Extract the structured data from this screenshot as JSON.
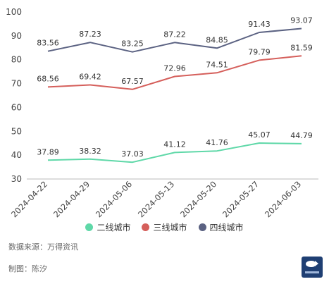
{
  "chart_data": {
    "type": "line",
    "categories": [
      "2024-04-22",
      "2024-04-29",
      "2024-05-06",
      "2024-05-13",
      "2024-05-20",
      "2024-05-27",
      "2024-06-03"
    ],
    "ylim": [
      30,
      100
    ],
    "yticks": [
      30,
      40,
      50,
      60,
      70,
      80,
      90,
      100
    ],
    "grid": false,
    "legend": "bottom",
    "series": [
      {
        "name": "二线城市",
        "color": "#5fd8a8",
        "values": [
          37.89,
          38.32,
          37.03,
          41.12,
          41.76,
          45.07,
          44.79
        ]
      },
      {
        "name": "三线城市",
        "color": "#d55f5b",
        "values": [
          68.56,
          69.42,
          67.57,
          72.96,
          74.51,
          79.79,
          81.59
        ]
      },
      {
        "name": "四线城市",
        "color": "#5b6282",
        "values": [
          83.56,
          87.23,
          83.25,
          87.22,
          84.85,
          91.43,
          93.07
        ]
      }
    ],
    "value_labels": [
      [
        "37.89",
        "38.32",
        "37.03",
        "41.12",
        "41.76",
        "45.07",
        "44.79"
      ],
      [
        "68.56",
        "69.42",
        "67.57",
        "72.96",
        "74.51",
        "79.79",
        "81.59"
      ],
      [
        "83.56",
        "87.23",
        "83.25",
        "87.22",
        "84.85",
        "91.43",
        "93.07"
      ]
    ]
  },
  "footer": {
    "source": "数据来源：万得资讯",
    "credit": "制图：陈汐"
  }
}
